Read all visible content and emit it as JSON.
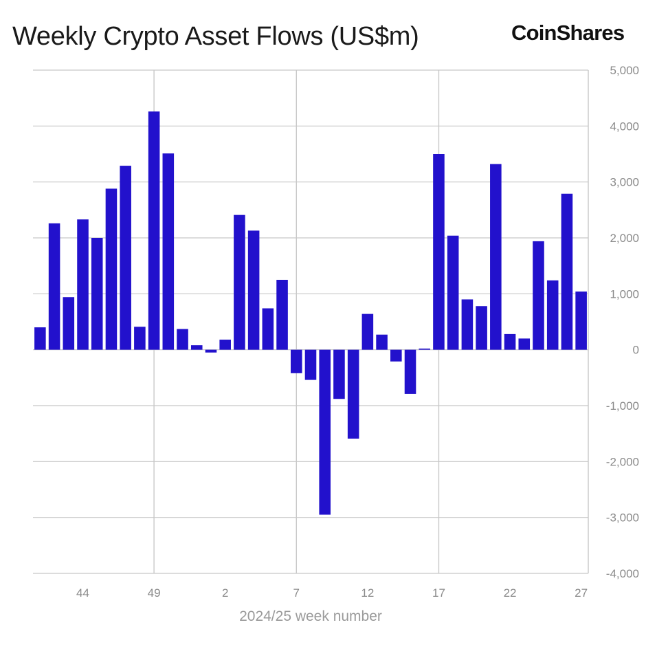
{
  "title": "Weekly Crypto Asset Flows (US$m)",
  "brand": "CoinShares",
  "colors": {
    "bar": "#2211cc",
    "grid": "#c8c8c8",
    "axis_text": "#8a8a8a",
    "title": "#1a1a1a"
  },
  "chart_data": {
    "type": "bar",
    "title": "Weekly Crypto Asset Flows (US$m)",
    "xlabel": "2024/25 week number",
    "ylabel": "",
    "ylim": [
      -4000,
      5000
    ],
    "y_ticks": [
      5000,
      4000,
      3000,
      2000,
      1000,
      0,
      -1000,
      -2000,
      -3000,
      -4000
    ],
    "y_tick_labels": [
      "5,000",
      "4,000",
      "3,000",
      "2,000",
      "1,000",
      "0",
      "-1,000",
      "-2,000",
      "-3,000",
      "-4,000"
    ],
    "y_axis_position": "right",
    "x_tick_labels": [
      "44",
      "49",
      "2",
      "7",
      "12",
      "17",
      "22",
      "27"
    ],
    "x_tick_category_index": [
      3,
      8,
      13,
      18,
      23,
      28,
      33,
      38
    ],
    "vertical_gridlines_at_index": [
      8,
      18,
      28
    ],
    "categories": [
      "41",
      "42",
      "43",
      "44",
      "45",
      "46",
      "47",
      "48",
      "49",
      "50",
      "51",
      "52",
      "1",
      "2",
      "3",
      "4",
      "5",
      "6",
      "7",
      "8",
      "9",
      "10",
      "11",
      "12",
      "13",
      "14",
      "15",
      "16",
      "17",
      "18",
      "19",
      "20",
      "21",
      "22",
      "23",
      "24",
      "25",
      "26",
      "27"
    ],
    "values": [
      400,
      2260,
      940,
      2330,
      2000,
      2880,
      3290,
      410,
      4260,
      3510,
      370,
      80,
      -50,
      180,
      2410,
      2130,
      740,
      1250,
      -420,
      -540,
      -2950,
      -880,
      -1590,
      640,
      270,
      -210,
      -790,
      20,
      3500,
      2040,
      900,
      780,
      3320,
      280,
      200,
      1940,
      1240,
      2790,
      1040
    ]
  }
}
